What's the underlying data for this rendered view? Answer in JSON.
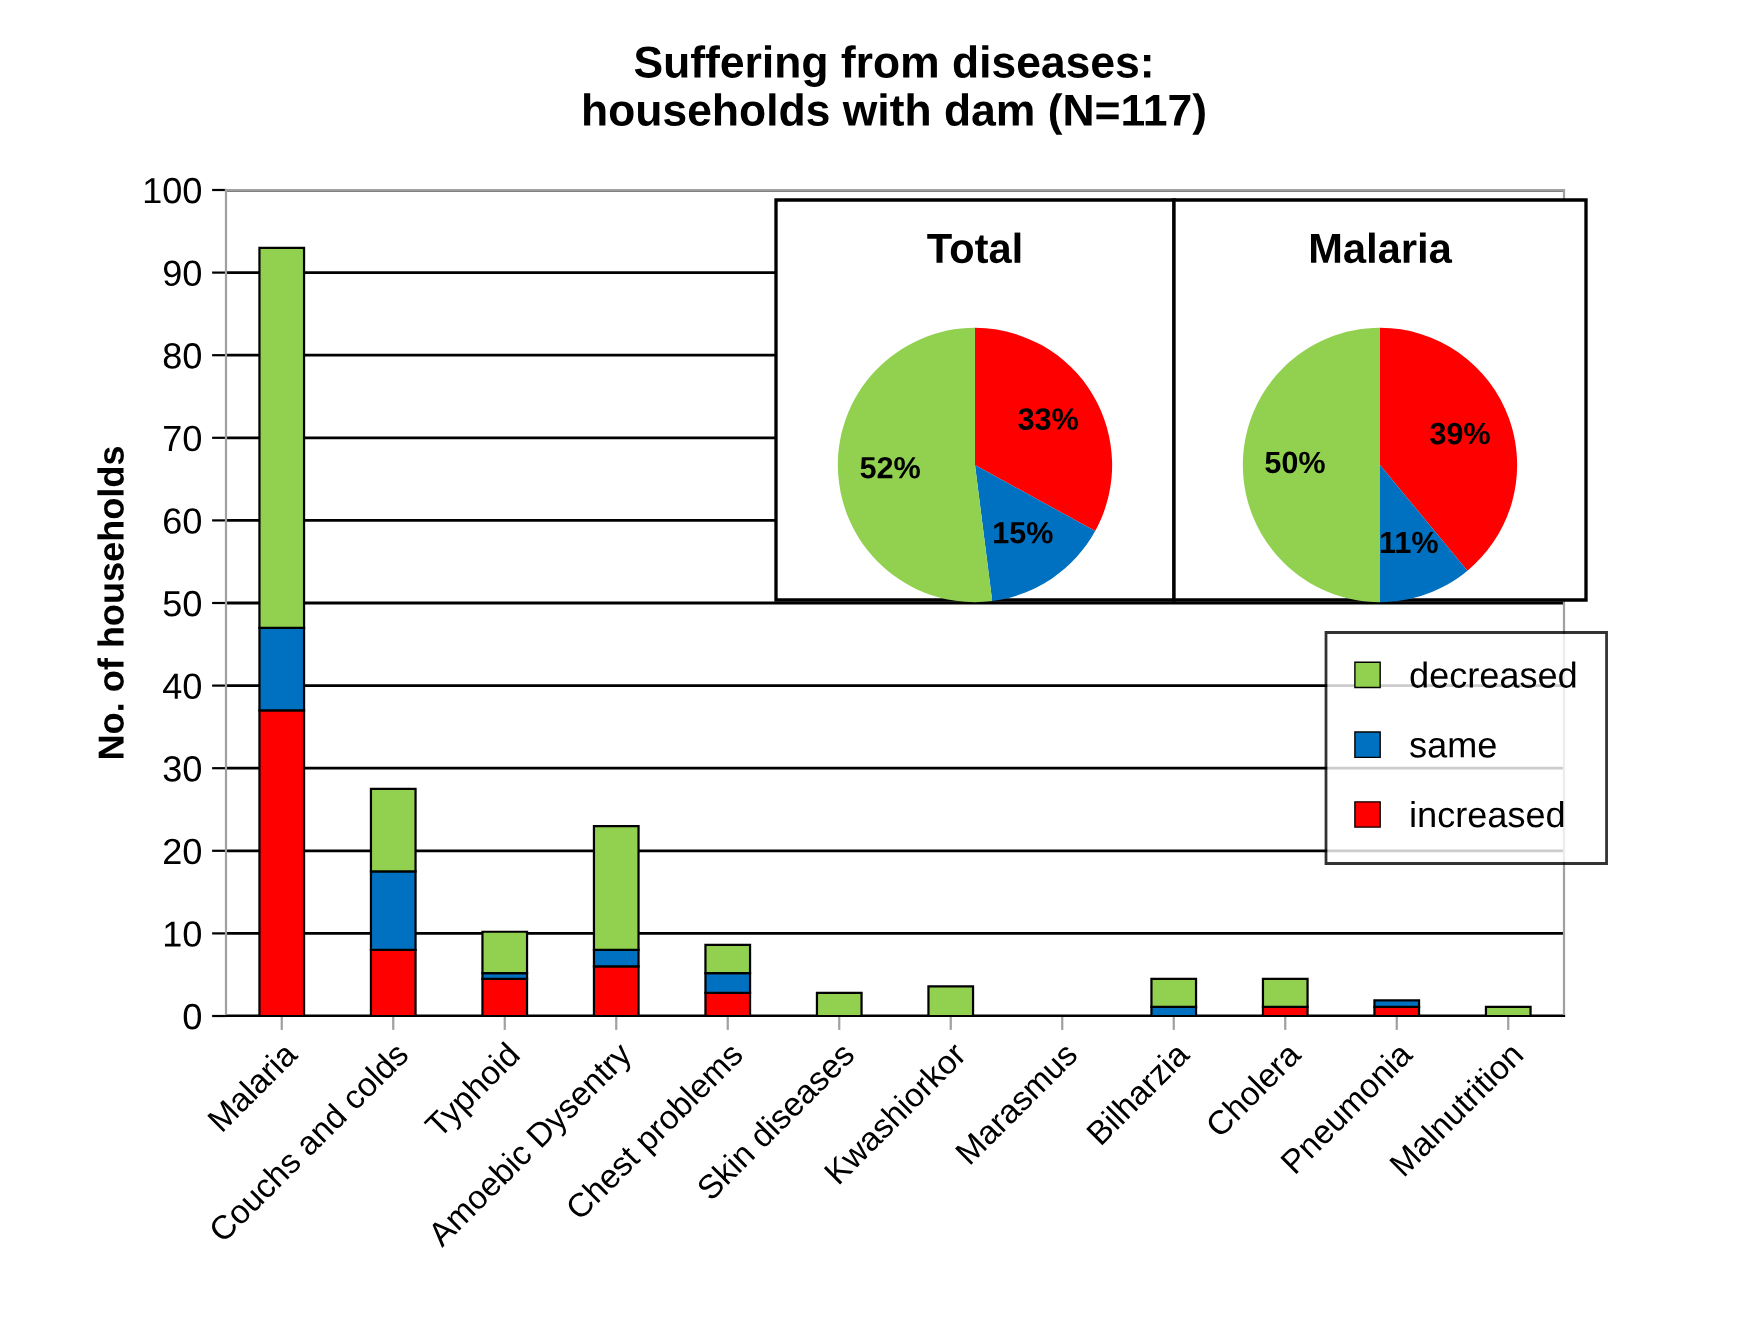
{
  "chart_data": [
    {
      "type": "bar",
      "title": "Suffering from diseases:\nhouseholds with dam (N=117)",
      "ylabel": "No. of households",
      "stacked": true,
      "categories": [
        "Malaria",
        "Couchs and colds",
        "Typhoid",
        "Amoebic Dysentry",
        "Chest problems",
        "Skin diseases",
        "Kwashiorkor",
        "Marasmus",
        "Bilharzia",
        "Cholera",
        "Pneumonia",
        "Malnutrition"
      ],
      "series": [
        {
          "name": "increased",
          "color": "#ff0000",
          "values": [
            37,
            8,
            4.5,
            6,
            2.8,
            null,
            null,
            null,
            null,
            1.1,
            1.1,
            null
          ]
        },
        {
          "name": "same",
          "color": "#0070c0",
          "values": [
            10,
            9.5,
            0.7,
            2,
            2.4,
            null,
            null,
            null,
            1.1,
            null,
            0.8,
            null
          ]
        },
        {
          "name": "decreased",
          "color": "#92d050",
          "values": [
            46,
            10,
            5,
            15,
            3.4,
            2.8,
            3.6,
            null,
            3.4,
            3.4,
            null,
            1.1
          ]
        }
      ],
      "ylim": [
        0,
        100
      ],
      "yticks": [
        0,
        10,
        20,
        30,
        40,
        50,
        60,
        70,
        80,
        90,
        100
      ],
      "grid": "y",
      "legend": "right"
    },
    {
      "type": "pie",
      "title": "Total",
      "categories": [
        null,
        null,
        null
      ],
      "values": [
        33,
        15,
        52
      ],
      "colors": [
        "#ff0000",
        "#0070c0",
        "#92d050"
      ],
      "value_labels": [
        "33%",
        "15%",
        "52%"
      ]
    },
    {
      "type": "pie",
      "title": "Malaria",
      "categories": [
        null,
        null,
        null
      ],
      "values": [
        39,
        11,
        50
      ],
      "colors": [
        "#ff0000",
        "#0070c0",
        "#92d050"
      ],
      "value_labels": [
        "39%",
        "11%",
        "50%"
      ]
    }
  ]
}
